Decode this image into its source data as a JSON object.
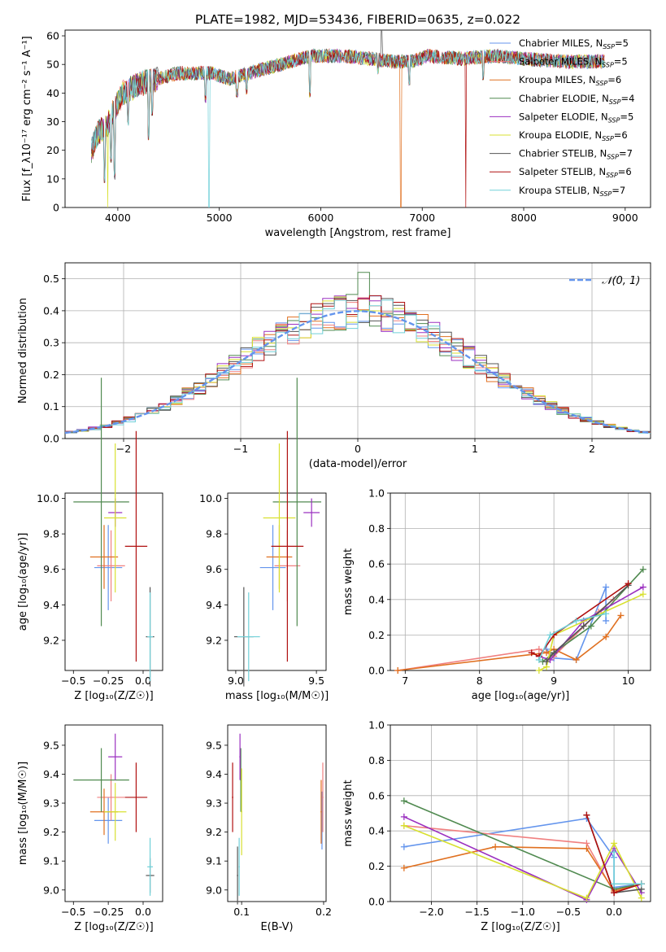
{
  "figure_title": "PLATE=1982, MJD=53436, FIBERID=0635, z=0.022",
  "colors": {
    "chabrier_miles": "#6495ED",
    "salpeter_miles": "#F08080",
    "kroupa_miles": "#E07020",
    "chabrier_elodie": "#508A50",
    "salpeter_elodie": "#9B30C0",
    "kroupa_elodie": "#D8E030",
    "chabrier_stelib": "#555555",
    "salpeter_stelib": "#B01010",
    "kroupa_stelib": "#70D0D8",
    "gaussian": "#6495ED"
  },
  "chart_data": [
    {
      "type": "line",
      "panel": "spectrum",
      "xlabel": "wavelength [Angstrom, rest frame]",
      "ylabel": "Flux [f_λ10⁻¹⁷ erg cm⁻² s⁻¹ A⁻¹]",
      "xlim": [
        3480,
        9250
      ],
      "ylim": [
        0,
        62
      ],
      "xticks": [
        4000,
        5000,
        6000,
        7000,
        8000,
        9000
      ],
      "yticks": [
        0,
        10,
        20,
        30,
        40,
        50,
        60
      ],
      "grid": false,
      "legend_position": "top-right",
      "legend": [
        {
          "key": "chabrier_miles",
          "label": "Chabrier MILES, N",
          "sub": "SSP",
          "tail": "=5"
        },
        {
          "key": "salpeter_miles",
          "label": "Salpeter MILES, N",
          "sub": "SSP",
          "tail": "=5"
        },
        {
          "key": "kroupa_miles",
          "label": "Kroupa MILES, N",
          "sub": "SSP",
          "tail": "=6"
        },
        {
          "key": "chabrier_elodie",
          "label": "Chabrier ELODIE, N",
          "sub": "SSP",
          "tail": "=4"
        },
        {
          "key": "salpeter_elodie",
          "label": "Salpeter ELODIE, N",
          "sub": "SSP",
          "tail": "=5"
        },
        {
          "key": "kroupa_elodie",
          "label": "Kroupa ELODIE, N",
          "sub": "SSP",
          "tail": "=6"
        },
        {
          "key": "chabrier_stelib",
          "label": "Chabrier STELIB, N",
          "sub": "SSP",
          "tail": "=7"
        },
        {
          "key": "salpeter_stelib",
          "label": "Salpeter STELIB, N",
          "sub": "SSP",
          "tail": "=6"
        },
        {
          "key": "kroupa_stelib",
          "label": "Kroupa STELIB, N",
          "sub": "SSP",
          "tail": "=7"
        }
      ],
      "continuum": [
        [
          3740,
          20
        ],
        [
          3800,
          26
        ],
        [
          3900,
          29
        ],
        [
          3950,
          33
        ],
        [
          4050,
          40
        ],
        [
          4200,
          43
        ],
        [
          4400,
          45
        ],
        [
          4600,
          47
        ],
        [
          4900,
          47
        ],
        [
          5100,
          45
        ],
        [
          5300,
          47
        ],
        [
          5600,
          50
        ],
        [
          5900,
          53
        ],
        [
          6200,
          53
        ],
        [
          6500,
          52
        ],
        [
          6700,
          51
        ],
        [
          6900,
          51
        ],
        [
          7050,
          53
        ],
        [
          7400,
          52
        ],
        [
          7700,
          53
        ],
        [
          8000,
          52
        ],
        [
          8400,
          51
        ],
        [
          8800,
          51
        ]
      ],
      "features": [
        {
          "x": 3870,
          "y": 10
        },
        {
          "x": 3935,
          "y": 17
        },
        {
          "x": 3970,
          "y": 11
        },
        {
          "x": 4102,
          "y": 30
        },
        {
          "x": 4305,
          "y": 25
        },
        {
          "x": 4340,
          "y": 33
        },
        {
          "x": 4862,
          "y": 38
        },
        {
          "x": 5175,
          "y": 40
        },
        {
          "x": 5270,
          "y": 41
        },
        {
          "x": 5895,
          "y": 40
        },
        {
          "x": 6563,
          "y": 48
        },
        {
          "x": 6870,
          "y": 44
        },
        {
          "x": 7600,
          "y": 46
        }
      ],
      "dropouts": [
        {
          "key": "kroupa_elodie",
          "x": 3900
        },
        {
          "key": "kroupa_stelib",
          "x": 4900
        },
        {
          "key": "kroupa_miles",
          "x": 6790
        },
        {
          "key": "salpeter_stelib",
          "x": 7430
        }
      ],
      "spike": {
        "x": 6600,
        "y": 62
      }
    },
    {
      "type": "bar",
      "panel": "residual-histogram",
      "xlabel": "(data-model)/error",
      "ylabel": "Normed distribution",
      "xlim": [
        -2.5,
        2.5
      ],
      "ylim": [
        0,
        0.55
      ],
      "xticks": [
        -2,
        -1,
        0,
        1,
        2
      ],
      "yticks": [
        0.0,
        0.1,
        0.2,
        0.3,
        0.4,
        0.5
      ],
      "grid": true,
      "legend_position": "top-right",
      "gaussian_label": "𝒩(0, 1)",
      "bin_width": 0.1
    },
    {
      "type": "scatter",
      "panel": "age-vs-Z",
      "xlabel": "Z [log₁₀(Z/Z☉)]",
      "ylabel": "age [log₁₀(age/yr)]",
      "xlim": [
        -0.56,
        0.14
      ],
      "ylim": [
        9.03,
        10.03
      ],
      "xticks": [
        -0.5,
        -0.25,
        0.0
      ],
      "xticklabels": [
        "−0.5",
        "−0.25",
        "0.0"
      ],
      "yticks": [
        9.2,
        9.4,
        9.6,
        9.8,
        10.0
      ],
      "grid": false,
      "points": [
        {
          "key": "chabrier_miles",
          "x": -0.25,
          "xerr": 0.1,
          "y": 9.61,
          "yerr": 0.24
        },
        {
          "key": "salpeter_miles",
          "x": -0.23,
          "xerr": 0.1,
          "y": 9.62,
          "yerr": 0.2
        },
        {
          "key": "kroupa_miles",
          "x": -0.28,
          "xerr": 0.1,
          "y": 9.67,
          "yerr": 0.18
        },
        {
          "key": "chabrier_elodie",
          "x": -0.3,
          "xerr": 0.2,
          "y": 9.98,
          "yerr": 0.7
        },
        {
          "key": "salpeter_elodie",
          "x": -0.2,
          "xerr": 0.05,
          "y": 9.92,
          "yerr": 0.08
        },
        {
          "key": "kroupa_elodie",
          "x": -0.2,
          "xerr": 0.08,
          "y": 9.89,
          "yerr": 0.42
        },
        {
          "key": "chabrier_stelib",
          "x": 0.05,
          "xerr": 0.03,
          "y": 9.22,
          "yerr": 0.28
        },
        {
          "key": "salpeter_stelib",
          "x": -0.05,
          "xerr": 0.08,
          "y": 9.73,
          "yerr": 0.65
        },
        {
          "key": "kroupa_stelib",
          "x": 0.05,
          "xerr": 0.02,
          "y": 9.22,
          "yerr": 0.25
        }
      ]
    },
    {
      "type": "scatter",
      "panel": "age-vs-mass",
      "xlabel": "mass [log₁₀(M/M☉)]",
      "ylabel": "",
      "xlim": [
        8.95,
        9.56
      ],
      "ylim": [
        9.03,
        10.03
      ],
      "xticks": [
        9.0,
        9.5
      ],
      "yticks": [
        9.2,
        9.4,
        9.6,
        9.8,
        10.0
      ],
      "grid": false,
      "points": [
        {
          "key": "chabrier_miles",
          "x": 9.23,
          "xerr": 0.08,
          "y": 9.61,
          "yerr": 0.24
        },
        {
          "key": "salpeter_miles",
          "x": 9.32,
          "xerr": 0.08,
          "y": 9.62,
          "yerr": 0.2
        },
        {
          "key": "kroupa_miles",
          "x": 9.27,
          "xerr": 0.08,
          "y": 9.67,
          "yerr": 0.18
        },
        {
          "key": "chabrier_elodie",
          "x": 9.38,
          "xerr": 0.15,
          "y": 9.98,
          "yerr": 0.7
        },
        {
          "key": "salpeter_elodie",
          "x": 9.47,
          "xerr": 0.05,
          "y": 9.92,
          "yerr": 0.08
        },
        {
          "key": "kroupa_elodie",
          "x": 9.27,
          "xerr": 0.1,
          "y": 9.89,
          "yerr": 0.42
        },
        {
          "key": "chabrier_stelib",
          "x": 9.05,
          "xerr": 0.06,
          "y": 9.22,
          "yerr": 0.28
        },
        {
          "key": "salpeter_stelib",
          "x": 9.32,
          "xerr": 0.1,
          "y": 9.73,
          "yerr": 0.65
        },
        {
          "key": "kroupa_stelib",
          "x": 9.08,
          "xerr": 0.07,
          "y": 9.22,
          "yerr": 0.25
        }
      ]
    },
    {
      "type": "line",
      "panel": "mass-weight-vs-age",
      "xlabel": "age [log₁₀(age/yr)]",
      "ylabel": "mass weight",
      "xlim": [
        6.8,
        10.3
      ],
      "ylim": [
        0,
        1.0
      ],
      "xticks": [
        7,
        8,
        9,
        10
      ],
      "yticks": [
        0.0,
        0.2,
        0.4,
        0.6,
        0.8,
        1.0
      ],
      "grid": true,
      "series": [
        {
          "key": "chabrier_miles",
          "points": [
            [
              8.9,
              0.12
            ],
            [
              9.0,
              0.07
            ],
            [
              9.3,
              0.06
            ],
            [
              9.7,
              0.47
            ],
            [
              9.7,
              0.28
            ]
          ]
        },
        {
          "key": "salpeter_miles",
          "points": [
            [
              6.9,
              0.0
            ],
            [
              8.8,
              0.12
            ],
            [
              9.0,
              0.08
            ],
            [
              9.6,
              0.33
            ],
            [
              9.8,
              0.4
            ]
          ]
        },
        {
          "key": "kroupa_miles",
          "points": [
            [
              6.9,
              0.0
            ],
            [
              8.9,
              0.1
            ],
            [
              9.0,
              0.12
            ],
            [
              9.3,
              0.06
            ],
            [
              9.7,
              0.19
            ],
            [
              9.9,
              0.31
            ]
          ]
        },
        {
          "key": "chabrier_elodie",
          "points": [
            [
              8.85,
              0.05
            ],
            [
              9.0,
              0.1
            ],
            [
              9.5,
              0.25
            ],
            [
              10.2,
              0.57
            ]
          ]
        },
        {
          "key": "salpeter_elodie",
          "points": [
            [
              8.8,
              0.08
            ],
            [
              8.95,
              0.06
            ],
            [
              9.4,
              0.28
            ],
            [
              10.2,
              0.47
            ]
          ]
        },
        {
          "key": "kroupa_elodie",
          "points": [
            [
              8.8,
              0.0
            ],
            [
              8.9,
              0.02
            ],
            [
              9.0,
              0.2
            ],
            [
              10.2,
              0.43
            ]
          ]
        },
        {
          "key": "chabrier_stelib",
          "points": [
            [
              8.9,
              0.05
            ],
            [
              9.0,
              0.1
            ],
            [
              9.4,
              0.25
            ],
            [
              10.0,
              0.48
            ]
          ]
        },
        {
          "key": "salpeter_stelib",
          "points": [
            [
              8.7,
              0.1
            ],
            [
              8.8,
              0.08
            ],
            [
              9.0,
              0.2
            ],
            [
              10.0,
              0.49
            ]
          ]
        },
        {
          "key": "kroupa_stelib",
          "points": [
            [
              8.8,
              0.06
            ],
            [
              8.95,
              0.2
            ],
            [
              9.3,
              0.28
            ],
            [
              9.7,
              0.32
            ]
          ]
        }
      ]
    },
    {
      "type": "scatter",
      "panel": "mass-vs-Z",
      "xlabel": "Z [log₁₀(Z/Z☉)]",
      "ylabel": "mass [log₁₀(M/M☉)]",
      "xlim": [
        -0.56,
        0.14
      ],
      "ylim": [
        8.96,
        9.57
      ],
      "xticks": [
        -0.5,
        -0.25,
        0.0
      ],
      "xticklabels": [
        "−0.5",
        "−0.25",
        "0.0"
      ],
      "yticks": [
        9.0,
        9.1,
        9.2,
        9.3,
        9.4,
        9.5
      ],
      "grid": false,
      "points": [
        {
          "key": "chabrier_miles",
          "x": -0.25,
          "xerr": 0.1,
          "y": 9.24,
          "yerr": 0.08
        },
        {
          "key": "salpeter_miles",
          "x": -0.23,
          "xerr": 0.1,
          "y": 9.32,
          "yerr": 0.08
        },
        {
          "key": "kroupa_miles",
          "x": -0.28,
          "xerr": 0.1,
          "y": 9.27,
          "yerr": 0.08
        },
        {
          "key": "chabrier_elodie",
          "x": -0.3,
          "xerr": 0.2,
          "y": 9.38,
          "yerr": 0.11
        },
        {
          "key": "salpeter_elodie",
          "x": -0.2,
          "xerr": 0.05,
          "y": 9.46,
          "yerr": 0.08
        },
        {
          "key": "kroupa_elodie",
          "x": -0.2,
          "xerr": 0.08,
          "y": 9.27,
          "yerr": 0.1
        },
        {
          "key": "chabrier_stelib",
          "x": 0.05,
          "xerr": 0.03,
          "y": 9.05,
          "yerr": 0.06
        },
        {
          "key": "salpeter_stelib",
          "x": -0.05,
          "xerr": 0.08,
          "y": 9.32,
          "yerr": 0.12
        },
        {
          "key": "kroupa_stelib",
          "x": 0.05,
          "xerr": 0.02,
          "y": 9.08,
          "yerr": 0.1
        }
      ]
    },
    {
      "type": "scatter",
      "panel": "mass-vs-ebv",
      "xlabel": "E(B-V)",
      "ylabel": "",
      "xlim": [
        0.083,
        0.203
      ],
      "ylim": [
        8.96,
        9.57
      ],
      "xticks": [
        0.1,
        0.2
      ],
      "yticks": [
        9.0,
        9.1,
        9.2,
        9.3,
        9.4,
        9.5
      ],
      "grid": false,
      "points": [
        {
          "key": "chabrier_miles",
          "x": 0.198,
          "xerr": 0.0008,
          "y": 9.24,
          "yerr": 0.1
        },
        {
          "key": "salpeter_miles",
          "x": 0.199,
          "xerr": 0.0008,
          "y": 9.32,
          "yerr": 0.12
        },
        {
          "key": "kroupa_miles",
          "x": 0.197,
          "xerr": 0.0008,
          "y": 9.27,
          "yerr": 0.11
        },
        {
          "key": "chabrier_elodie",
          "x": 0.099,
          "xerr": 0.0008,
          "y": 9.38,
          "yerr": 0.11
        },
        {
          "key": "salpeter_elodie",
          "x": 0.098,
          "xerr": 0.0008,
          "y": 9.46,
          "yerr": 0.08
        },
        {
          "key": "kroupa_elodie",
          "x": 0.1,
          "xerr": 0.0008,
          "y": 9.27,
          "yerr": 0.15
        },
        {
          "key": "chabrier_stelib",
          "x": 0.095,
          "xerr": 0.0008,
          "y": 9.05,
          "yerr": 0.1
        },
        {
          "key": "salpeter_stelib",
          "x": 0.089,
          "xerr": 0.0008,
          "y": 9.32,
          "yerr": 0.12
        },
        {
          "key": "kroupa_stelib",
          "x": 0.097,
          "xerr": 0.0008,
          "y": 9.08,
          "yerr": 0.1
        }
      ]
    },
    {
      "type": "line",
      "panel": "mass-weight-vs-Z",
      "xlabel": "Z [log₁₀(Z/Z☉)]",
      "ylabel": "mass weight",
      "xlim": [
        -2.45,
        0.4
      ],
      "ylim": [
        0,
        1.0
      ],
      "xticks": [
        -2.0,
        -1.5,
        -1.0,
        -0.5,
        0.0
      ],
      "xticklabels": [
        "−2.0",
        "−1.5",
        "−1.0",
        "−0.5",
        "0.0"
      ],
      "yticks": [
        0.0,
        0.2,
        0.4,
        0.6,
        0.8,
        1.0
      ],
      "grid": true,
      "series": [
        {
          "key": "chabrier_miles",
          "points": [
            [
              -2.3,
              0.31
            ],
            [
              -0.3,
              0.47
            ],
            [
              0.0,
              0.25
            ],
            [
              0.0,
              0.08
            ],
            [
              0.3,
              0.1
            ]
          ]
        },
        {
          "key": "salpeter_miles",
          "points": [
            [
              -2.3,
              0.43
            ],
            [
              -0.3,
              0.33
            ],
            [
              0.0,
              0.05
            ],
            [
              0.3,
              0.1
            ]
          ]
        },
        {
          "key": "kroupa_miles",
          "points": [
            [
              -2.3,
              0.19
            ],
            [
              -1.3,
              0.31
            ],
            [
              -0.3,
              0.3
            ],
            [
              0.0,
              0.06
            ],
            [
              0.3,
              0.1
            ]
          ]
        },
        {
          "key": "chabrier_elodie",
          "points": [
            [
              -2.3,
              0.57
            ],
            [
              0.0,
              0.07
            ],
            [
              0.3,
              0.1
            ]
          ]
        },
        {
          "key": "salpeter_elodie",
          "points": [
            [
              -2.3,
              0.48
            ],
            [
              -0.3,
              0.01
            ],
            [
              0.0,
              0.3
            ],
            [
              0.3,
              0.05
            ]
          ]
        },
        {
          "key": "kroupa_elodie",
          "points": [
            [
              -2.3,
              0.43
            ],
            [
              -0.3,
              0.02
            ],
            [
              0.0,
              0.33
            ],
            [
              0.3,
              0.02
            ]
          ]
        },
        {
          "key": "chabrier_stelib",
          "points": [
            [
              -0.3,
              0.49
            ],
            [
              0.0,
              0.05
            ],
            [
              0.3,
              0.07
            ]
          ]
        },
        {
          "key": "salpeter_stelib",
          "points": [
            [
              -0.3,
              0.49
            ],
            [
              0.0,
              0.05
            ],
            [
              0.3,
              0.1
            ]
          ]
        },
        {
          "key": "kroupa_stelib",
          "points": [
            [
              0.0,
              0.28
            ],
            [
              0.0,
              0.1
            ],
            [
              0.3,
              0.1
            ]
          ]
        }
      ]
    }
  ]
}
